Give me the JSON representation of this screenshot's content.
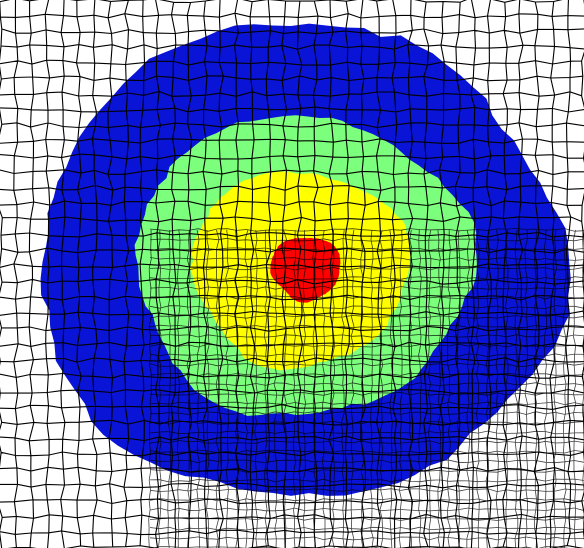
{
  "figure": {
    "kind": "contour-on-mesh",
    "regions": [
      {
        "name": "outer-ring",
        "color": "#0a14d6"
      },
      {
        "name": "middle-ring",
        "color": "#7cff7c"
      },
      {
        "name": "inner-ring",
        "color": "#ffff00"
      },
      {
        "name": "core",
        "color": "#ff0000"
      }
    ],
    "mesh": {
      "line_color": "#000000",
      "background": "#ffffff"
    }
  }
}
